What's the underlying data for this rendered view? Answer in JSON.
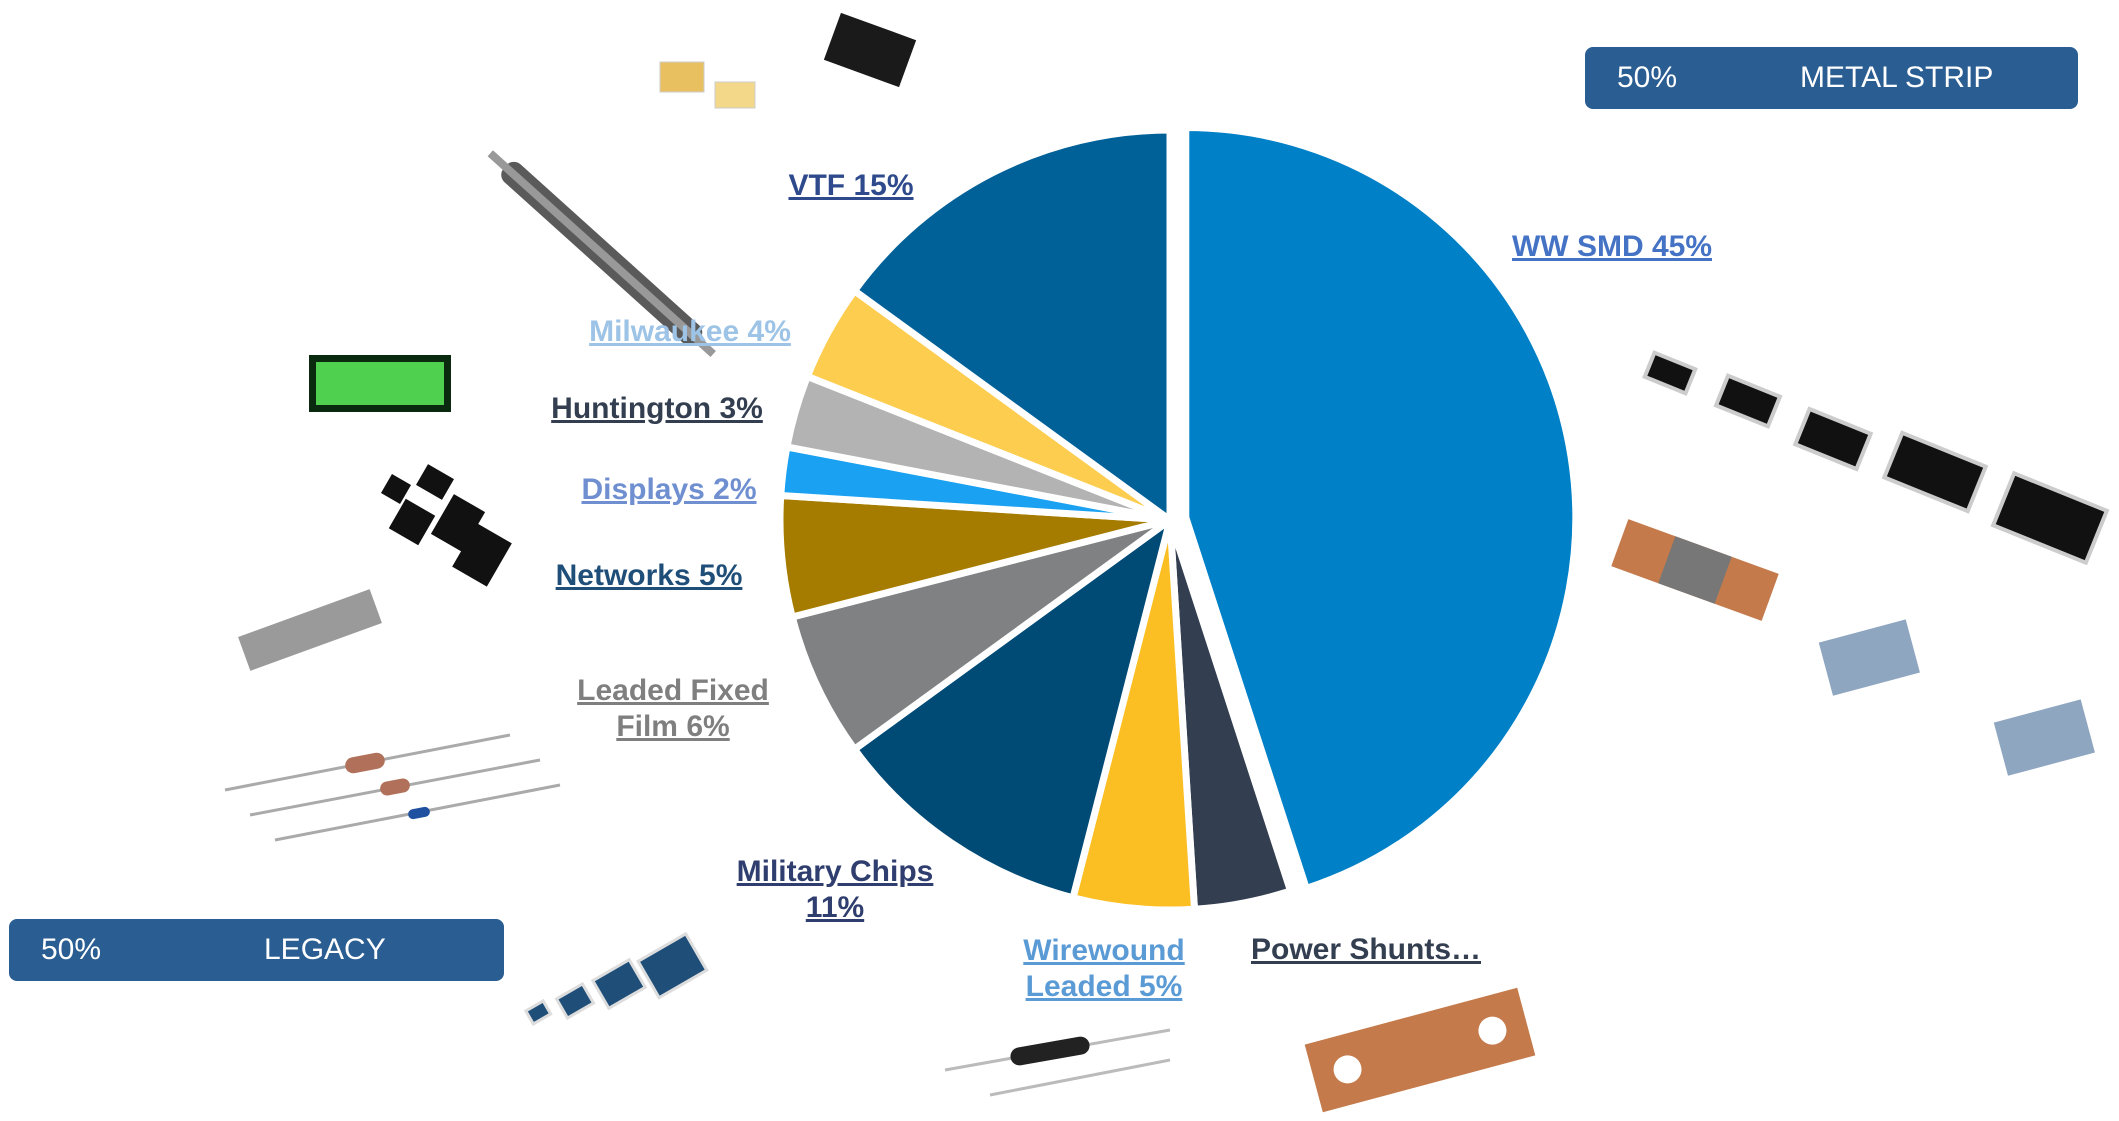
{
  "chart_data": {
    "type": "pie",
    "categories": [
      "WW SMD 45%",
      "Power Shunts…",
      "Wirewound Leaded 5%",
      "Military Chips 11%",
      "Leaded Fixed Film 6%",
      "Networks 5%",
      "Displays 2%",
      "Huntington 3%",
      "Milwaukee 4%",
      "VTF 15%"
    ],
    "values": [
      45,
      4,
      5,
      11,
      6,
      5,
      2,
      3,
      4,
      15
    ],
    "colors": [
      "#0080c6",
      "#333f50",
      "#fbbf24",
      "#004a76",
      "#7f8182",
      "#a67c00",
      "#1ba1f2",
      "#b3b3b3",
      "#fdcd50",
      "#006098"
    ],
    "label_colors": [
      "#4472c4",
      "#333f50",
      "#5b9bd5",
      "#2f3e6e",
      "#7f7f7f",
      "#1f4e79",
      "#6f8fd0",
      "#333f50",
      "#9dc3e6",
      "#2e4a8c"
    ],
    "callouts": [
      {
        "percent": "50%",
        "label": "METAL STRIP"
      },
      {
        "percent": "50%",
        "label": "LEGACY"
      }
    ]
  }
}
